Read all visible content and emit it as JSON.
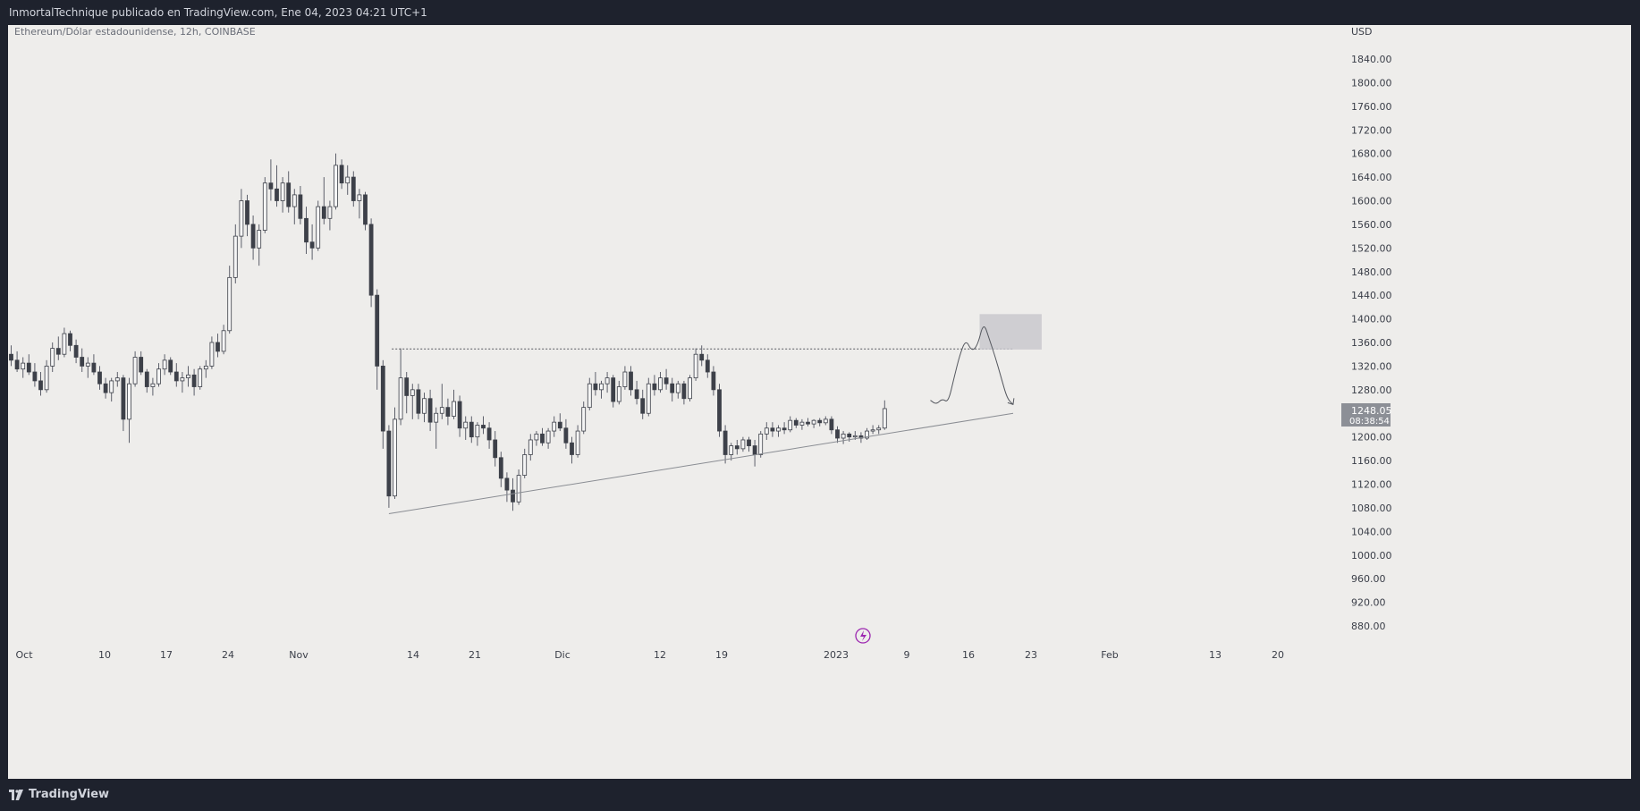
{
  "header": {
    "publication": "InmortalTechnique publicado en TradingView.com, Ene 04, 2023 04:21 UTC+1"
  },
  "footer": {
    "brand": "TradingView",
    "brand_icon": "tradingview-logo-icon"
  },
  "chart_data": {
    "type": "candlestick",
    "symbol_line": "Ethereum/Dólar estadounidense, 12h, COINBASE",
    "currency": "USD",
    "price_axis": {
      "labels": [
        "1840.00",
        "1800.00",
        "1760.00",
        "1720.00",
        "1680.00",
        "1640.00",
        "1600.00",
        "1560.00",
        "1520.00",
        "1480.00",
        "1440.00",
        "1400.00",
        "1360.00",
        "1320.00",
        "1280.00",
        "1200.00",
        "1160.00",
        "1120.00",
        "1080.00",
        "1040.00",
        "1000.00",
        "960.00",
        "920.00",
        "880.00"
      ],
      "ylim": [
        860,
        1880
      ]
    },
    "time_axis": {
      "labels": [
        "Oct",
        "10",
        "17",
        "24",
        "Nov",
        "14",
        "21",
        "Dic",
        "12",
        "19",
        "2023",
        "9",
        "16",
        "23",
        "Feb",
        "13",
        "20"
      ]
    },
    "last_price": {
      "value": "1248.05",
      "countdown": "08:38:54",
      "price": 1248.05
    },
    "candles": [
      [
        1340,
        1355,
        1320,
        1330
      ],
      [
        1330,
        1345,
        1310,
        1315
      ],
      [
        1315,
        1335,
        1300,
        1325
      ],
      [
        1325,
        1340,
        1305,
        1310
      ],
      [
        1310,
        1325,
        1285,
        1295
      ],
      [
        1295,
        1310,
        1270,
        1280
      ],
      [
        1280,
        1330,
        1275,
        1320
      ],
      [
        1320,
        1360,
        1310,
        1350
      ],
      [
        1350,
        1370,
        1330,
        1340
      ],
      [
        1340,
        1385,
        1335,
        1375
      ],
      [
        1375,
        1380,
        1345,
        1355
      ],
      [
        1355,
        1365,
        1325,
        1335
      ],
      [
        1335,
        1350,
        1310,
        1320
      ],
      [
        1320,
        1335,
        1300,
        1325
      ],
      [
        1325,
        1340,
        1305,
        1310
      ],
      [
        1310,
        1320,
        1280,
        1290
      ],
      [
        1290,
        1300,
        1265,
        1275
      ],
      [
        1275,
        1300,
        1260,
        1295
      ],
      [
        1295,
        1310,
        1285,
        1300
      ],
      [
        1300,
        1305,
        1210,
        1230
      ],
      [
        1230,
        1300,
        1190,
        1290
      ],
      [
        1290,
        1345,
        1285,
        1335
      ],
      [
        1335,
        1345,
        1305,
        1310
      ],
      [
        1310,
        1315,
        1275,
        1285
      ],
      [
        1285,
        1300,
        1270,
        1290
      ],
      [
        1290,
        1325,
        1285,
        1315
      ],
      [
        1315,
        1340,
        1305,
        1330
      ],
      [
        1330,
        1335,
        1305,
        1310
      ],
      [
        1310,
        1325,
        1285,
        1295
      ],
      [
        1295,
        1310,
        1275,
        1300
      ],
      [
        1300,
        1320,
        1285,
        1305
      ],
      [
        1305,
        1315,
        1270,
        1285
      ],
      [
        1285,
        1320,
        1280,
        1315
      ],
      [
        1315,
        1330,
        1300,
        1320
      ],
      [
        1320,
        1370,
        1315,
        1360
      ],
      [
        1360,
        1375,
        1335,
        1345
      ],
      [
        1345,
        1390,
        1340,
        1380
      ],
      [
        1380,
        1490,
        1375,
        1470
      ],
      [
        1470,
        1560,
        1460,
        1540
      ],
      [
        1540,
        1620,
        1520,
        1600
      ],
      [
        1600,
        1610,
        1540,
        1560
      ],
      [
        1560,
        1575,
        1500,
        1520
      ],
      [
        1520,
        1560,
        1490,
        1550
      ],
      [
        1550,
        1640,
        1545,
        1630
      ],
      [
        1630,
        1670,
        1600,
        1620
      ],
      [
        1620,
        1660,
        1590,
        1600
      ],
      [
        1600,
        1640,
        1580,
        1630
      ],
      [
        1630,
        1650,
        1580,
        1590
      ],
      [
        1590,
        1620,
        1560,
        1610
      ],
      [
        1610,
        1625,
        1560,
        1570
      ],
      [
        1570,
        1590,
        1510,
        1530
      ],
      [
        1530,
        1560,
        1500,
        1520
      ],
      [
        1520,
        1600,
        1515,
        1590
      ],
      [
        1590,
        1640,
        1560,
        1570
      ],
      [
        1570,
        1600,
        1550,
        1590
      ],
      [
        1590,
        1680,
        1585,
        1660
      ],
      [
        1660,
        1670,
        1620,
        1630
      ],
      [
        1630,
        1660,
        1610,
        1640
      ],
      [
        1640,
        1650,
        1590,
        1600
      ],
      [
        1600,
        1620,
        1570,
        1610
      ],
      [
        1610,
        1615,
        1550,
        1560
      ],
      [
        1560,
        1570,
        1420,
        1440
      ],
      [
        1440,
        1450,
        1280,
        1320
      ],
      [
        1320,
        1330,
        1180,
        1210
      ],
      [
        1210,
        1220,
        1080,
        1100
      ],
      [
        1100,
        1250,
        1095,
        1230
      ],
      [
        1230,
        1350,
        1220,
        1300
      ],
      [
        1300,
        1310,
        1240,
        1270
      ],
      [
        1270,
        1290,
        1230,
        1280
      ],
      [
        1280,
        1290,
        1230,
        1240
      ],
      [
        1240,
        1275,
        1225,
        1265
      ],
      [
        1265,
        1280,
        1210,
        1225
      ],
      [
        1225,
        1250,
        1180,
        1240
      ],
      [
        1240,
        1290,
        1230,
        1250
      ],
      [
        1250,
        1265,
        1220,
        1235
      ],
      [
        1235,
        1280,
        1230,
        1260
      ],
      [
        1260,
        1270,
        1200,
        1215
      ],
      [
        1215,
        1235,
        1195,
        1225
      ],
      [
        1225,
        1235,
        1190,
        1200
      ],
      [
        1200,
        1225,
        1185,
        1220
      ],
      [
        1220,
        1235,
        1205,
        1215
      ],
      [
        1215,
        1225,
        1180,
        1195
      ],
      [
        1195,
        1210,
        1150,
        1165
      ],
      [
        1165,
        1175,
        1115,
        1130
      ],
      [
        1130,
        1140,
        1090,
        1110
      ],
      [
        1110,
        1130,
        1075,
        1090
      ],
      [
        1090,
        1145,
        1085,
        1135
      ],
      [
        1135,
        1180,
        1130,
        1170
      ],
      [
        1170,
        1205,
        1160,
        1195
      ],
      [
        1195,
        1210,
        1185,
        1205
      ],
      [
        1205,
        1215,
        1185,
        1190
      ],
      [
        1190,
        1215,
        1180,
        1210
      ],
      [
        1210,
        1235,
        1200,
        1225
      ],
      [
        1225,
        1240,
        1210,
        1215
      ],
      [
        1215,
        1230,
        1180,
        1190
      ],
      [
        1190,
        1200,
        1155,
        1170
      ],
      [
        1170,
        1220,
        1165,
        1210
      ],
      [
        1210,
        1260,
        1205,
        1250
      ],
      [
        1250,
        1300,
        1245,
        1290
      ],
      [
        1290,
        1310,
        1270,
        1280
      ],
      [
        1280,
        1295,
        1265,
        1290
      ],
      [
        1290,
        1310,
        1275,
        1300
      ],
      [
        1300,
        1305,
        1250,
        1260
      ],
      [
        1260,
        1295,
        1255,
        1285
      ],
      [
        1285,
        1320,
        1280,
        1310
      ],
      [
        1310,
        1320,
        1270,
        1280
      ],
      [
        1280,
        1295,
        1255,
        1265
      ],
      [
        1265,
        1280,
        1230,
        1240
      ],
      [
        1240,
        1300,
        1235,
        1290
      ],
      [
        1290,
        1305,
        1270,
        1280
      ],
      [
        1280,
        1310,
        1275,
        1300
      ],
      [
        1300,
        1315,
        1280,
        1290
      ],
      [
        1290,
        1300,
        1260,
        1275
      ],
      [
        1275,
        1295,
        1265,
        1290
      ],
      [
        1290,
        1295,
        1255,
        1265
      ],
      [
        1265,
        1305,
        1260,
        1300
      ],
      [
        1300,
        1350,
        1295,
        1340
      ],
      [
        1340,
        1355,
        1320,
        1330
      ],
      [
        1330,
        1340,
        1300,
        1310
      ],
      [
        1310,
        1320,
        1270,
        1280
      ],
      [
        1280,
        1290,
        1200,
        1210
      ],
      [
        1210,
        1220,
        1155,
        1170
      ],
      [
        1170,
        1190,
        1160,
        1185
      ],
      [
        1185,
        1195,
        1170,
        1180
      ],
      [
        1180,
        1200,
        1175,
        1195
      ],
      [
        1195,
        1200,
        1175,
        1185
      ],
      [
        1185,
        1195,
        1150,
        1170
      ],
      [
        1170,
        1210,
        1165,
        1205
      ],
      [
        1205,
        1225,
        1195,
        1215
      ],
      [
        1215,
        1225,
        1200,
        1210
      ],
      [
        1210,
        1220,
        1200,
        1215
      ],
      [
        1215,
        1225,
        1205,
        1212
      ],
      [
        1212,
        1235,
        1208,
        1228
      ],
      [
        1228,
        1232,
        1215,
        1220
      ],
      [
        1220,
        1230,
        1212,
        1225
      ],
      [
        1225,
        1232,
        1218,
        1222
      ],
      [
        1222,
        1230,
        1215,
        1228
      ],
      [
        1228,
        1232,
        1218,
        1224
      ],
      [
        1224,
        1235,
        1220,
        1230
      ],
      [
        1230,
        1235,
        1205,
        1212
      ],
      [
        1212,
        1218,
        1190,
        1198
      ],
      [
        1198,
        1210,
        1188,
        1205
      ],
      [
        1205,
        1208,
        1192,
        1200
      ],
      [
        1200,
        1210,
        1195,
        1202
      ],
      [
        1202,
        1208,
        1190,
        1198
      ],
      [
        1198,
        1215,
        1195,
        1210
      ],
      [
        1210,
        1220,
        1205,
        1212
      ],
      [
        1212,
        1220,
        1205,
        1215
      ],
      [
        1215,
        1262,
        1212,
        1248
      ]
    ],
    "drawings": {
      "resistance_level": 1349,
      "trendline": {
        "from": [
          64,
          1070
        ],
        "to": [
          200,
          1240
        ]
      },
      "box": {
        "x": [
          165,
          174
        ],
        "y": [
          1348,
          1408
        ]
      },
      "projection": [
        [
          155,
          1262
        ],
        [
          156,
          1255
        ],
        [
          157,
          1265
        ],
        [
          158,
          1258
        ],
        [
          159,
          1300
        ],
        [
          160,
          1340
        ],
        [
          161,
          1365
        ],
        [
          162,
          1345
        ],
        [
          163,
          1355
        ],
        [
          164,
          1395
        ],
        [
          165,
          1365
        ],
        [
          166,
          1335
        ],
        [
          167,
          1300
        ],
        [
          168,
          1265
        ],
        [
          169,
          1255
        ]
      ]
    }
  }
}
